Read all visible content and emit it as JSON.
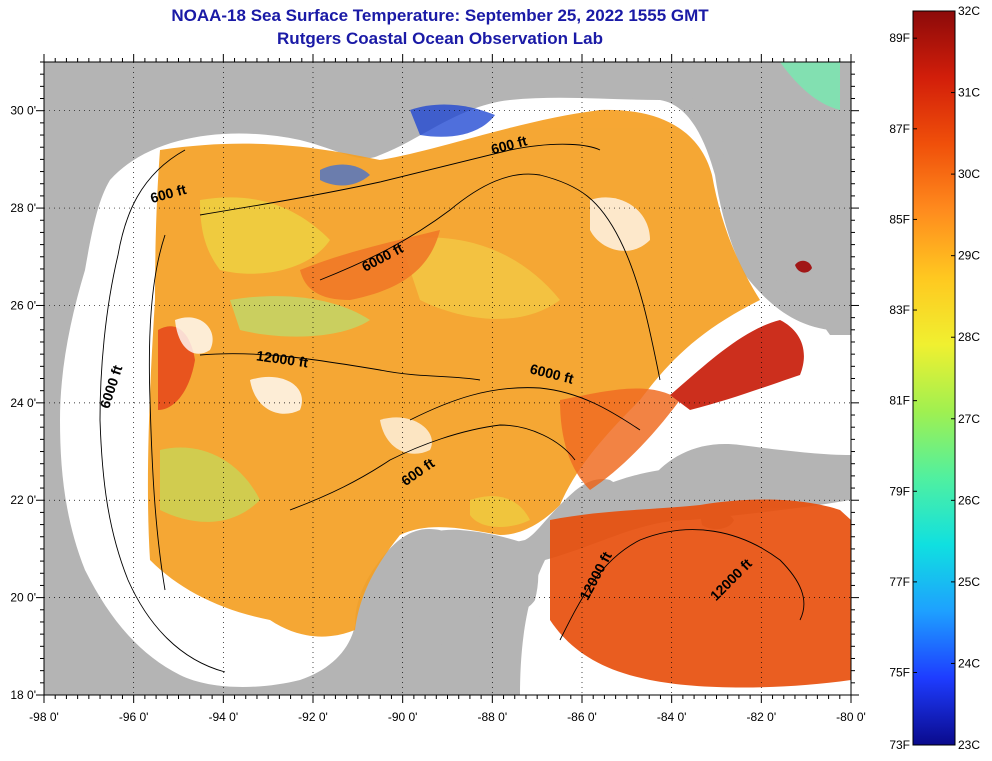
{
  "title": {
    "line1": "NOAA-18 Sea Surface Temperature:  September 25, 2022 1555 GMT",
    "line2": "Rutgers Coastal Ocean Observation Lab"
  },
  "map": {
    "lon_range": [
      -98,
      -80
    ],
    "lat_range": [
      18,
      31
    ],
    "lon_ticks": [
      {
        "value": -98,
        "label": "-98 0'"
      },
      {
        "value": -96,
        "label": "-96 0'"
      },
      {
        "value": -94,
        "label": "-94 0'"
      },
      {
        "value": -92,
        "label": "-92 0'"
      },
      {
        "value": -90,
        "label": "-90 0'"
      },
      {
        "value": -88,
        "label": "-88 0'"
      },
      {
        "value": -86,
        "label": "-86 0'"
      },
      {
        "value": -84,
        "label": "-84 0'"
      },
      {
        "value": -82,
        "label": "-82 0'"
      },
      {
        "value": -80,
        "label": "-80 0'"
      }
    ],
    "lat_ticks": [
      {
        "value": 18,
        "label": "18 0'"
      },
      {
        "value": 20,
        "label": "20 0'"
      },
      {
        "value": 22,
        "label": "22 0'"
      },
      {
        "value": 24,
        "label": "24 0'"
      },
      {
        "value": 26,
        "label": "26 0'"
      },
      {
        "value": 28,
        "label": "28 0'"
      },
      {
        "value": 30,
        "label": "30 0'"
      }
    ],
    "contour_labels": [
      {
        "text": "600 ft",
        "lon": -95.2,
        "lat": 28.2,
        "angle": -15
      },
      {
        "text": "600 ft",
        "lon": -87.6,
        "lat": 29.2,
        "angle": -15
      },
      {
        "text": "6000 ft",
        "lon": -90.4,
        "lat": 26.9,
        "angle": -28
      },
      {
        "text": "6000 ft",
        "lon": -96.4,
        "lat": 24.3,
        "angle": -72
      },
      {
        "text": "12000 ft",
        "lon": -92.7,
        "lat": 24.8,
        "angle": 8
      },
      {
        "text": "6000 ft",
        "lon": -86.7,
        "lat": 24.5,
        "angle": 14
      },
      {
        "text": "600 ft",
        "lon": -89.6,
        "lat": 22.5,
        "angle": -35
      },
      {
        "text": "12000 ft",
        "lon": -85.6,
        "lat": 20.4,
        "angle": -62
      },
      {
        "text": "12000 ft",
        "lon": -82.6,
        "lat": 20.3,
        "angle": -45
      }
    ],
    "colors": {
      "land": "#b4b4b4",
      "cloud": "#ffffff",
      "title": "#1a1aa6"
    }
  },
  "colorbar": {
    "colors": [
      "#0a0a8c",
      "#1e3cff",
      "#1ea0ff",
      "#10e0e0",
      "#50f0a0",
      "#a0f050",
      "#f0f030",
      "#ffc820",
      "#ff8c1e",
      "#f0500a",
      "#d21e0a",
      "#8c0a0a"
    ],
    "celsius": [
      {
        "value": 32,
        "label": "32C"
      },
      {
        "value": 31,
        "label": "31C"
      },
      {
        "value": 30,
        "label": "30C"
      },
      {
        "value": 29,
        "label": "29C"
      },
      {
        "value": 28,
        "label": "28C"
      },
      {
        "value": 27,
        "label": "27C"
      },
      {
        "value": 26,
        "label": "26C"
      },
      {
        "value": 25,
        "label": "25C"
      },
      {
        "value": 24,
        "label": "24C"
      },
      {
        "value": 23,
        "label": "23C"
      }
    ],
    "fahrenheit": [
      {
        "value": 89,
        "label": "89F"
      },
      {
        "value": 87,
        "label": "87F"
      },
      {
        "value": 85,
        "label": "85F"
      },
      {
        "value": 83,
        "label": "83F"
      },
      {
        "value": 81,
        "label": "81F"
      },
      {
        "value": 79,
        "label": "79F"
      },
      {
        "value": 77,
        "label": "77F"
      },
      {
        "value": 75,
        "label": "75F"
      },
      {
        "value": 73,
        "label": "73F"
      }
    ]
  }
}
